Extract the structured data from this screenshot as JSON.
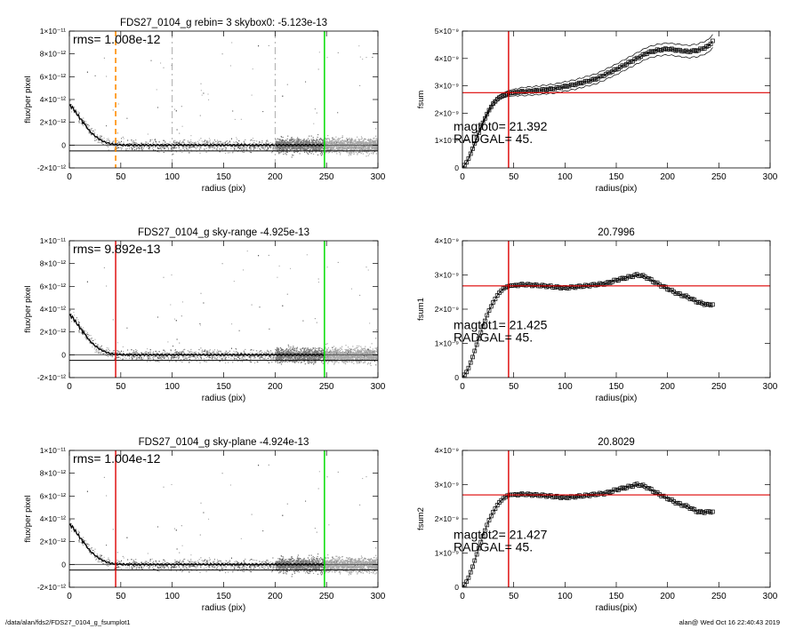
{
  "footer": {
    "left": "/data/alan/fds2/FDS27_0104_g_fsumplot1",
    "right": "alan@  Wed Oct 16 22:40:43 2019"
  },
  "colors": {
    "scatter": "#9a9a9a",
    "profile": "#000000",
    "skyline": "#555555",
    "limit_green": "#00dd00",
    "limit_red": "#dd0000",
    "limit_orange": "#ff8c00",
    "guide_dash": "#999999"
  },
  "chart_data": [
    {
      "type": "scatter",
      "title": "FDS27_0104_g rebin= 3    skybox0: -5.123e-13",
      "xlabel": "radius (pix)",
      "ylabel": "flux/per pixel",
      "xlim": [
        0,
        300
      ],
      "ylim": [
        -2e-12,
        1e-11
      ],
      "xticks": [
        "0",
        "50",
        "100",
        "150",
        "200",
        "250",
        "300"
      ],
      "yticks": [
        "-2×10⁻¹²",
        "0",
        "2×10⁻¹²",
        "4×10⁻¹²",
        "6×10⁻¹²",
        "8×10⁻¹²",
        "1×10⁻¹¹"
      ],
      "ytick_values": [
        -2e-12,
        0,
        2e-12,
        4e-12,
        6e-12,
        8e-12,
        1e-11
      ],
      "annotation": "rms= 1.008e-12",
      "profile": {
        "x": [
          0,
          3,
          6,
          10,
          15,
          20,
          25,
          30,
          35,
          40,
          45,
          50,
          60,
          80,
          100,
          150,
          200,
          248
        ],
        "y": [
          3.5e-12,
          3.3e-12,
          2.9e-12,
          2.4e-12,
          1.8e-12,
          1.2e-12,
          8e-13,
          4.5e-13,
          2.5e-13,
          1e-13,
          5e-14,
          2e-14,
          0,
          0,
          0,
          0,
          0,
          0
        ]
      },
      "sky_levels": [
        0,
        -5.123e-13
      ],
      "vlines": [
        {
          "x": 45,
          "style": "orange-dashed"
        },
        {
          "x": 100,
          "style": "grey-dashed"
        },
        {
          "x": 200,
          "style": "grey-dashed"
        },
        {
          "x": 248,
          "style": "green"
        }
      ],
      "scatter_spread": [
        -2e-12,
        1e-11
      ]
    },
    {
      "type": "line",
      "title": "",
      "xlabel": "radius(pix)",
      "ylabel": "fsum",
      "xlim": [
        0,
        300
      ],
      "ylim": [
        0,
        5e-09
      ],
      "xticks": [
        "0",
        "50",
        "100",
        "150",
        "200",
        "250",
        "300"
      ],
      "yticks": [
        "0",
        "1×10⁻⁹",
        "2×10⁻⁹",
        "3×10⁻⁹",
        "4×10⁻⁹",
        "5×10⁻⁹"
      ],
      "ytick_values": [
        0,
        1e-09,
        2e-09,
        3e-09,
        4e-09,
        5e-09
      ],
      "annotations": [
        "magtot0=  21.392",
        "RADGAL=      45."
      ],
      "series": [
        {
          "x": [
            0,
            5,
            10,
            15,
            20,
            25,
            30,
            35,
            40,
            45,
            55,
            70,
            90,
            110,
            130,
            150,
            170,
            180,
            190,
            200,
            210,
            220,
            230,
            240,
            245
          ],
          "y": [
            0,
            2.5e-10,
            7e-10,
            1.2e-09,
            1.65e-09,
            2.05e-09,
            2.35e-09,
            2.55e-09,
            2.65e-09,
            2.72e-09,
            2.78e-09,
            2.82e-09,
            2.9e-09,
            3.05e-09,
            3.25e-09,
            3.6e-09,
            4e-09,
            4.2e-09,
            4.3e-09,
            4.35e-09,
            4.3e-09,
            4.25e-09,
            4.3e-09,
            4.45e-09,
            4.7e-09
          ]
        }
      ],
      "envelope": 1.2e-10,
      "hline": 2.75e-09,
      "vline": 45
    },
    {
      "type": "scatter",
      "title": "FDS27_0104_g sky-range -4.925e-13",
      "xlabel": "radius (pix)",
      "ylabel": "flux/per pixel",
      "xlim": [
        0,
        300
      ],
      "ylim": [
        -2e-12,
        1e-11
      ],
      "xticks": [
        "0",
        "50",
        "100",
        "150",
        "200",
        "250",
        "300"
      ],
      "yticks": [
        "-2×10⁻¹²",
        "0",
        "2×10⁻¹²",
        "4×10⁻¹²",
        "6×10⁻¹²",
        "8×10⁻¹²",
        "1×10⁻¹¹"
      ],
      "ytick_values": [
        -2e-12,
        0,
        2e-12,
        4e-12,
        6e-12,
        8e-12,
        1e-11
      ],
      "annotation": "rms= 9.892e-13",
      "profile": {
        "x": [
          0,
          3,
          6,
          10,
          15,
          20,
          25,
          30,
          35,
          40,
          45,
          50,
          60,
          80,
          100,
          150,
          200,
          248
        ],
        "y": [
          3.5e-12,
          3.3e-12,
          2.9e-12,
          2.4e-12,
          1.8e-12,
          1.2e-12,
          8e-13,
          4.5e-13,
          2.5e-13,
          1e-13,
          5e-14,
          2e-14,
          0,
          0,
          0,
          0,
          0,
          0
        ]
      },
      "sky_levels": [
        0,
        -4.925e-13
      ],
      "vlines": [
        {
          "x": 45,
          "style": "red"
        },
        {
          "x": 248,
          "style": "green"
        }
      ],
      "scatter_spread": [
        -2e-12,
        1e-11
      ]
    },
    {
      "type": "line",
      "title": "20.7996",
      "xlabel": "radius(pix)",
      "ylabel": "fsum1",
      "xlim": [
        0,
        300
      ],
      "ylim": [
        0,
        4e-09
      ],
      "xticks": [
        "0",
        "50",
        "100",
        "150",
        "200",
        "250",
        "300"
      ],
      "yticks": [
        "0",
        "1×10⁻⁹",
        "2×10⁻⁹",
        "3×10⁻⁹",
        "4×10⁻⁹"
      ],
      "ytick_values": [
        0,
        1e-09,
        2e-09,
        3e-09,
        4e-09
      ],
      "annotations": [
        "magtot1=  21.425",
        "RADGAL=      45."
      ],
      "series": [
        {
          "x": [
            0,
            5,
            10,
            15,
            20,
            25,
            30,
            35,
            40,
            45,
            60,
            80,
            100,
            120,
            140,
            150,
            160,
            170,
            175,
            180,
            190,
            200,
            210,
            220,
            230,
            240,
            245
          ],
          "y": [
            0,
            2e-10,
            6e-10,
            1.05e-09,
            1.5e-09,
            1.9e-09,
            2.2e-09,
            2.45e-09,
            2.6e-09,
            2.68e-09,
            2.72e-09,
            2.68e-09,
            2.62e-09,
            2.68e-09,
            2.75e-09,
            2.85e-09,
            2.92e-09,
            3e-09,
            2.98e-09,
            2.92e-09,
            2.75e-09,
            2.6e-09,
            2.45e-09,
            2.35e-09,
            2.2e-09,
            2.12e-09,
            2.15e-09
          ]
        }
      ],
      "hline": 2.68e-09,
      "vline": 45
    },
    {
      "type": "scatter",
      "title": "FDS27_0104_g sky-plane -4.924e-13",
      "xlabel": "radius (pix)",
      "ylabel": "flux/per pixel",
      "xlim": [
        0,
        300
      ],
      "ylim": [
        -2e-12,
        1e-11
      ],
      "xticks": [
        "0",
        "50",
        "100",
        "150",
        "200",
        "250",
        "300"
      ],
      "yticks": [
        "-2×10⁻¹²",
        "0",
        "2×10⁻¹²",
        "4×10⁻¹²",
        "6×10⁻¹²",
        "8×10⁻¹²",
        "1×10⁻¹¹"
      ],
      "ytick_values": [
        -2e-12,
        0,
        2e-12,
        4e-12,
        6e-12,
        8e-12,
        1e-11
      ],
      "annotation": "rms= 1.004e-12",
      "profile": {
        "x": [
          0,
          3,
          6,
          10,
          15,
          20,
          25,
          30,
          35,
          40,
          45,
          50,
          60,
          80,
          100,
          150,
          200,
          248
        ],
        "y": [
          3.5e-12,
          3.3e-12,
          2.9e-12,
          2.4e-12,
          1.8e-12,
          1.2e-12,
          8e-13,
          4.5e-13,
          2.5e-13,
          1e-13,
          5e-14,
          2e-14,
          0,
          0,
          0,
          0,
          0,
          0
        ]
      },
      "sky_levels": [
        0,
        -4.924e-13
      ],
      "vlines": [
        {
          "x": 45,
          "style": "red"
        },
        {
          "x": 248,
          "style": "green"
        }
      ],
      "scatter_spread": [
        -2e-12,
        1e-11
      ]
    },
    {
      "type": "line",
      "title": "20.8029",
      "xlabel": "radius(pix)",
      "ylabel": "fsum2",
      "xlim": [
        0,
        300
      ],
      "ylim": [
        0,
        4e-09
      ],
      "xticks": [
        "0",
        "50",
        "100",
        "150",
        "200",
        "250",
        "300"
      ],
      "yticks": [
        "0",
        "1×10⁻⁹",
        "2×10⁻⁹",
        "3×10⁻⁹",
        "4×10⁻⁹"
      ],
      "ytick_values": [
        0,
        1e-09,
        2e-09,
        3e-09,
        4e-09
      ],
      "annotations": [
        "magtot2=  21.427",
        "RADGAL=      45."
      ],
      "series": [
        {
          "x": [
            0,
            5,
            10,
            15,
            20,
            25,
            30,
            35,
            40,
            45,
            60,
            80,
            100,
            120,
            140,
            150,
            160,
            170,
            175,
            180,
            190,
            200,
            210,
            220,
            230,
            240,
            245
          ],
          "y": [
            0,
            2e-10,
            6e-10,
            1.05e-09,
            1.5e-09,
            1.9e-09,
            2.2e-09,
            2.45e-09,
            2.6e-09,
            2.7e-09,
            2.72e-09,
            2.68e-09,
            2.62e-09,
            2.68e-09,
            2.75e-09,
            2.85e-09,
            2.92e-09,
            3e-09,
            2.98e-09,
            2.92e-09,
            2.75e-09,
            2.6e-09,
            2.45e-09,
            2.35e-09,
            2.2e-09,
            2.2e-09,
            2.22e-09
          ]
        }
      ],
      "hline": 2.7e-09,
      "vline": 45
    }
  ]
}
